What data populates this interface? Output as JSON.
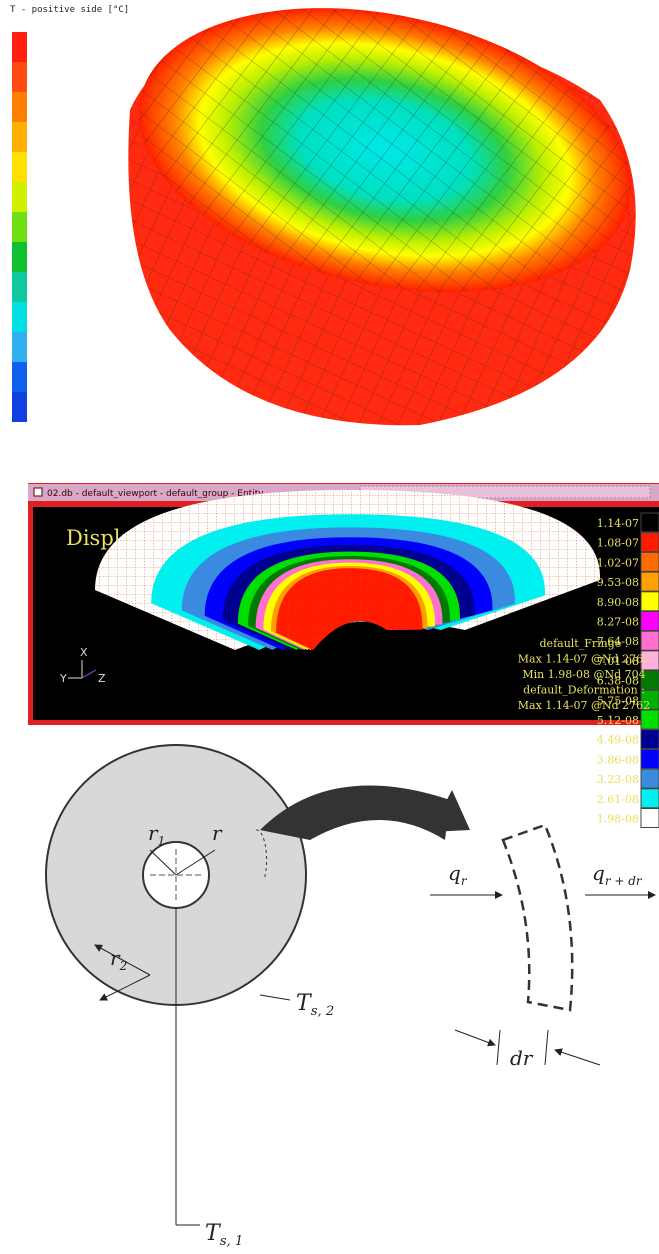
{
  "panel_1": {
    "title": "T - positive side [°C]"
  },
  "panel_2": {
    "window_title": "02.db - default_viewport - default_group - Entity",
    "heading": "Displacements",
    "legend": [
      {
        "label": "1.14-07",
        "color": "#000000"
      },
      {
        "label": "1.08-07",
        "color": "#ff1a00"
      },
      {
        "label": "1.02-07",
        "color": "#ff6a00"
      },
      {
        "label": "9.53-08",
        "color": "#ffa000"
      },
      {
        "label": "8.90-08",
        "color": "#ffff00"
      },
      {
        "label": "8.27-08",
        "color": "#ff00ff"
      },
      {
        "label": "7.64-08",
        "color": "#ff70d0"
      },
      {
        "label": "7.01-08",
        "color": "#ffb0e0"
      },
      {
        "label": "6.38-08",
        "color": "#007a00"
      },
      {
        "label": "5.75-08",
        "color": "#00b000"
      },
      {
        "label": "5.12-08",
        "color": "#00e000"
      },
      {
        "label": "4.49-08",
        "color": "#000090"
      },
      {
        "label": "3.86-08",
        "color": "#0000ff"
      },
      {
        "label": "3.23-08",
        "color": "#3a8ae0"
      },
      {
        "label": "2.61-08",
        "color": "#00f0f0"
      },
      {
        "label": "1.98-08",
        "color": "#ffffff"
      }
    ],
    "axes": [
      "X",
      "Y",
      "Z"
    ],
    "footer": [
      "default_Fringe :",
      "Max 1.14-07 @Nd 2762",
      "Min 1.98-08 @Nd 704",
      "default_Deformation :",
      "Max 1.14-07 @Nd 2762"
    ]
  },
  "panel_3": {
    "labels": {
      "r1": {
        "main": "r",
        "sub": "1"
      },
      "r": {
        "main": "r"
      },
      "r2": {
        "main": "r",
        "sub": "2"
      },
      "ts2": {
        "main": "T",
        "sub": "s, 2"
      },
      "ts1": {
        "main": "T",
        "sub": "s, 1"
      },
      "qr": {
        "main": "q",
        "sub": "r"
      },
      "qrdr": {
        "main": "q",
        "sub": "r + dr"
      },
      "dr": {
        "main": "dr"
      }
    }
  }
}
